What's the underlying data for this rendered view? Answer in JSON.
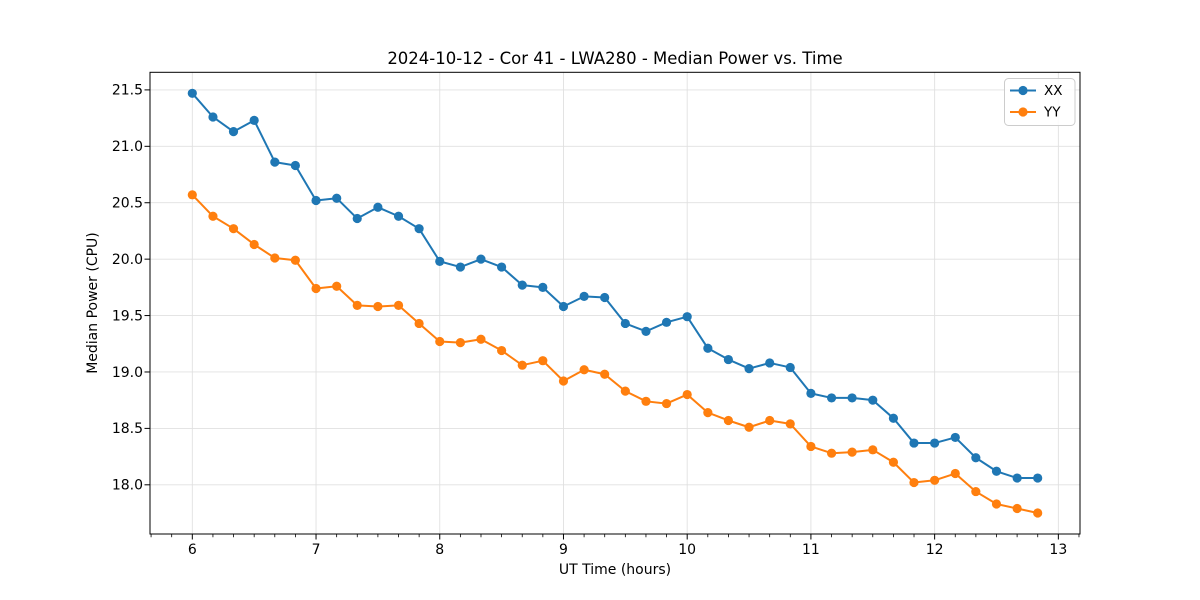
{
  "chart_data": {
    "type": "line",
    "title": "2024-10-12 - Cor 41 - LWA280 - Median Power vs. Time",
    "xlabel": "UT Time (hours)",
    "ylabel": "Median Power (CPU)",
    "xlim": [
      5.658,
      13.175
    ],
    "ylim": [
      17.564,
      21.656
    ],
    "xticks": [
      6,
      7,
      8,
      9,
      10,
      11,
      12,
      13
    ],
    "xtick_labels": [
      "6",
      "7",
      "8",
      "9",
      "10",
      "11",
      "12",
      "13"
    ],
    "yticks": [
      18.0,
      18.5,
      19.0,
      19.5,
      20.0,
      20.5,
      21.0,
      21.5
    ],
    "ytick_labels": [
      "18.0",
      "18.5",
      "19.0",
      "19.5",
      "20.0",
      "20.5",
      "21.0",
      "21.5"
    ],
    "x_minor_tick_step": 0.166667,
    "grid": true,
    "legend_position": "upper right",
    "background_color": "#ffffff",
    "grid_color": "#e0e0e0",
    "spine_color": "#000000",
    "x": [
      6.0,
      6.167,
      6.333,
      6.5,
      6.667,
      6.833,
      7.0,
      7.167,
      7.333,
      7.5,
      7.667,
      7.833,
      8.0,
      8.167,
      8.333,
      8.5,
      8.667,
      8.833,
      9.0,
      9.167,
      9.333,
      9.5,
      9.667,
      9.833,
      10.0,
      10.167,
      10.333,
      10.5,
      10.667,
      10.833,
      11.0,
      11.167,
      11.333,
      11.5,
      11.667,
      11.833,
      12.0,
      12.167,
      12.333,
      12.5,
      12.667,
      12.833
    ],
    "series": [
      {
        "name": "XX",
        "color": "#1f77b4",
        "values": [
          21.47,
          21.26,
          21.13,
          21.23,
          20.86,
          20.83,
          20.52,
          20.54,
          20.36,
          20.46,
          20.38,
          20.27,
          19.98,
          19.93,
          20.0,
          19.93,
          19.77,
          19.75,
          19.58,
          19.67,
          19.66,
          19.43,
          19.36,
          19.44,
          19.49,
          19.21,
          19.11,
          19.03,
          19.08,
          19.04,
          18.81,
          18.77,
          18.77,
          18.75,
          18.59,
          18.37,
          18.37,
          18.42,
          18.24,
          18.12,
          18.06,
          18.06
        ]
      },
      {
        "name": "YY",
        "color": "#ff7f0e",
        "values": [
          20.57,
          20.38,
          20.27,
          20.13,
          20.01,
          19.99,
          19.74,
          19.76,
          19.59,
          19.58,
          19.59,
          19.43,
          19.27,
          19.26,
          19.29,
          19.19,
          19.06,
          19.1,
          18.92,
          19.02,
          18.98,
          18.83,
          18.74,
          18.72,
          18.8,
          18.64,
          18.57,
          18.51,
          18.57,
          18.54,
          18.34,
          18.28,
          18.29,
          18.31,
          18.2,
          18.02,
          18.04,
          18.1,
          17.94,
          17.83,
          17.79,
          17.75
        ]
      }
    ]
  }
}
